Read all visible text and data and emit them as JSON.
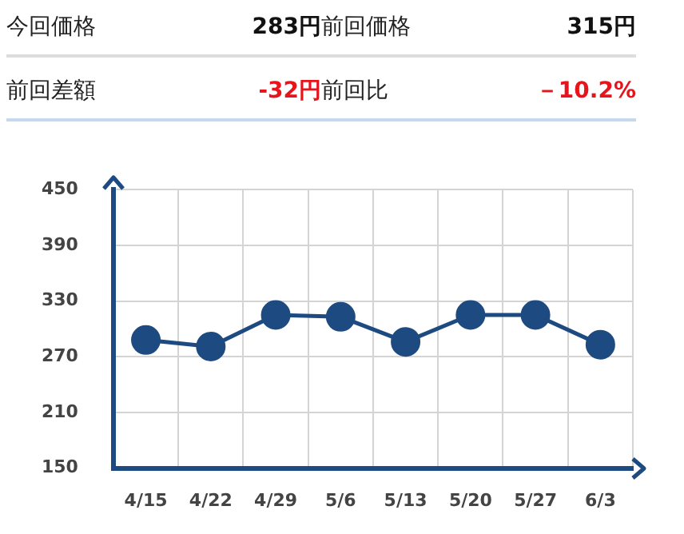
{
  "chart_data": {
    "type": "line",
    "annotations": [
      "今回価格",
      "283円",
      "前回価格",
      "315円",
      "前回差額",
      "-32円",
      "前回比",
      "－10.2%"
    ],
    "categories": [
      "4/15",
      "4/22",
      "4/29",
      "5/6",
      "5/13",
      "5/20",
      "5/27",
      "6/3"
    ],
    "values": [
      288,
      281,
      315,
      313,
      286,
      315,
      315,
      283
    ],
    "color": "#1d4a80",
    "ylim": [
      150,
      450
    ],
    "yticks": [
      150,
      210,
      270,
      330,
      390,
      450
    ],
    "grid": true,
    "marker": "circle",
    "line_style": "solid"
  }
}
